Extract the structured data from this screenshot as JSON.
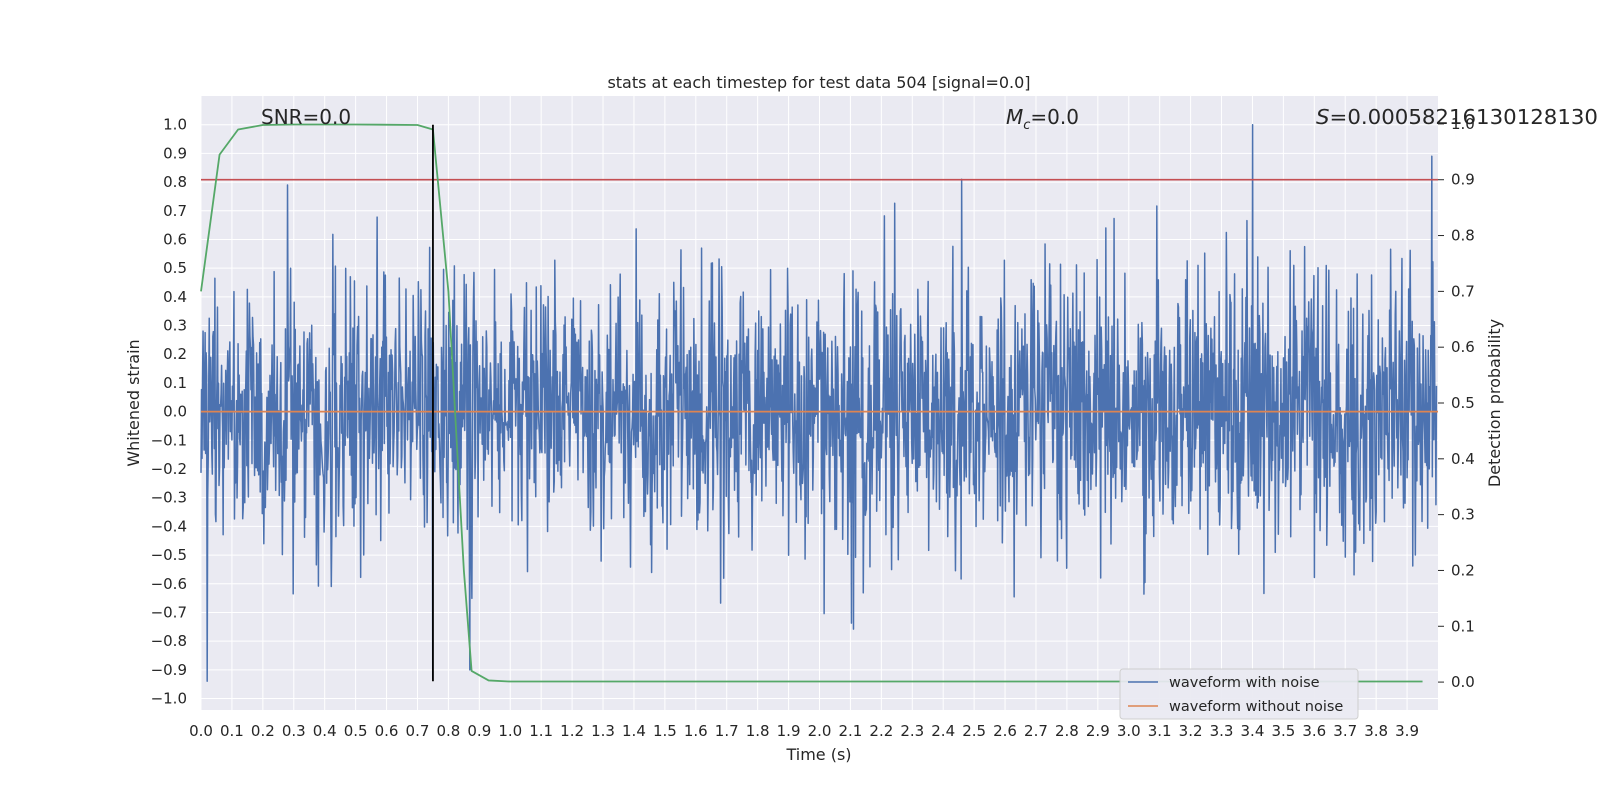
{
  "chart_data": {
    "type": "line",
    "title": "stats at each timestep for test data 504 [signal=0.0]",
    "xlabel": "Time (s)",
    "ylabel_left": "Whitened strain",
    "ylabel_right": "Detection probability",
    "xlim": [
      0.0,
      4.0
    ],
    "ylim_left": [
      -1.04,
      1.1
    ],
    "ylim_right": [
      -0.05,
      1.05
    ],
    "x_ticks": [
      "0.0",
      "0.1",
      "0.2",
      "0.3",
      "0.4",
      "0.5",
      "0.6",
      "0.7",
      "0.8",
      "0.9",
      "1.0",
      "1.1",
      "1.2",
      "1.3",
      "1.4",
      "1.5",
      "1.6",
      "1.7",
      "1.8",
      "1.9",
      "2.0",
      "2.1",
      "2.2",
      "2.3",
      "2.4",
      "2.5",
      "2.6",
      "2.7",
      "2.8",
      "2.9",
      "3.0",
      "3.1",
      "3.2",
      "3.3",
      "3.4",
      "3.5",
      "3.6",
      "3.7",
      "3.8",
      "3.9"
    ],
    "y_ticks_left": [
      "1.0",
      "0.9",
      "0.8",
      "0.7",
      "0.6",
      "0.5",
      "0.4",
      "0.3",
      "0.2",
      "0.1",
      "0.0",
      "−0.1",
      "−0.2",
      "−0.3",
      "−0.4",
      "−0.5",
      "−0.6",
      "−0.7",
      "−0.8",
      "−0.9",
      "−1.0"
    ],
    "y_ticks_right": [
      "1.0",
      "0.9",
      "0.8",
      "0.7",
      "0.6",
      "0.5",
      "0.4",
      "0.3",
      "0.2",
      "0.1",
      "0.0"
    ],
    "grid": true,
    "legend_position": "lower-right",
    "annotations": {
      "snr": "SNR=0.0",
      "mc_symbol": "M",
      "mc_subscript": "c",
      "mc_value": "=0.0",
      "s_symbol": "S",
      "s_value": "=0.00058216130128130"
    },
    "series": [
      {
        "name": "waveform with noise",
        "axis": "left",
        "color": "#4c72b0",
        "style": "dense noise spanning roughly -0.95 to 1.0",
        "notable_peaks": [
          [
            0.02,
            -0.94
          ],
          [
            0.28,
            0.79
          ],
          [
            0.75,
            -0.93
          ],
          [
            0.87,
            -0.9
          ],
          [
            2.46,
            0.81
          ],
          [
            3.4,
            1.0
          ],
          [
            3.98,
            0.89
          ]
        ]
      },
      {
        "name": "waveform without noise",
        "axis": "left",
        "color": "#dd8452",
        "x": [
          0.0,
          4.0
        ],
        "y": [
          0.0,
          0.0
        ]
      },
      {
        "axis": "right",
        "color": "#55a868",
        "x": [
          0.0,
          0.06,
          0.12,
          0.2,
          0.3,
          0.5,
          0.7,
          0.75,
          0.8,
          0.85,
          0.875,
          0.93,
          1.0,
          1.5,
          2.0,
          2.5,
          3.0,
          3.5,
          3.95
        ],
        "y": [
          0.7,
          0.945,
          0.99,
          0.998,
          0.999,
          0.999,
          0.998,
          0.99,
          0.7,
          0.2,
          0.02,
          0.003,
          0.001,
          0.001,
          0.001,
          0.001,
          0.001,
          0.001,
          0.001
        ]
      }
    ],
    "threshold": {
      "axis": "right",
      "value": 0.9,
      "color": "#c44e52"
    },
    "marker_line": {
      "x": 0.75,
      "y_from": -0.94,
      "y_to": 1.0,
      "color": "#000000"
    }
  },
  "legend": [
    {
      "label": "waveform with noise",
      "color": "#4c72b0"
    },
    {
      "label": "waveform without noise",
      "color": "#dd8452"
    }
  ]
}
